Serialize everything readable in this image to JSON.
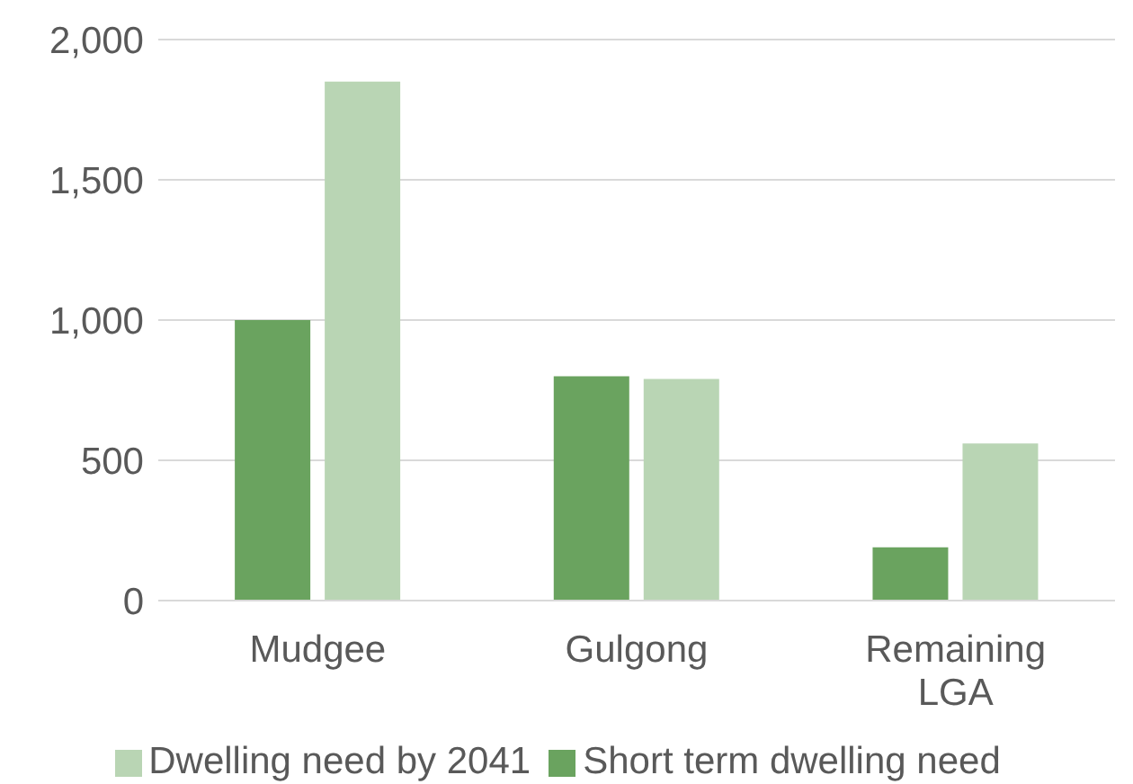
{
  "chart_data": {
    "type": "bar",
    "categories": [
      "Mudgee",
      "Gulgong",
      "Remaining LGA"
    ],
    "series": [
      {
        "name": "Short term dwelling need",
        "color": "#6aa35f",
        "values": [
          1000,
          800,
          190
        ]
      },
      {
        "name": "Dwelling need by 2041",
        "color": "#b9d5b4",
        "values": [
          1850,
          790,
          560
        ]
      }
    ],
    "ylim": [
      0,
      2000
    ],
    "yticks": [
      {
        "value": 0,
        "label": "0"
      },
      {
        "value": 500,
        "label": "500"
      },
      {
        "value": 1000,
        "label": "1,000"
      },
      {
        "value": 1500,
        "label": "1,500"
      },
      {
        "value": 2000,
        "label": "2,000"
      }
    ],
    "grid": "y",
    "legend": "bottom"
  }
}
